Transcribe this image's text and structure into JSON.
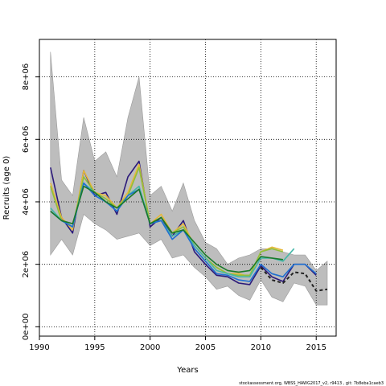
{
  "chart_data": {
    "type": "line",
    "title": "",
    "xlabel": "Years",
    "ylabel": "Recruits (age 0)",
    "xlim": [
      1990,
      2016.8
    ],
    "ylim": [
      -300000,
      9200000
    ],
    "xticks": [
      1990,
      1995,
      2000,
      2005,
      2010,
      2015
    ],
    "yticks": [
      0,
      2000000,
      4000000,
      6000000,
      8000000
    ],
    "ytick_labels": [
      "0e+00",
      "2e+06",
      "4e+06",
      "6e+06",
      "8e+06"
    ],
    "grid": true,
    "uncertainty_band": {
      "x": [
        1991,
        1992,
        1993,
        1994,
        1995,
        1996,
        1997,
        1998,
        1999,
        2000,
        2001,
        2002,
        2003,
        2004,
        2005,
        2006,
        2007,
        2008,
        2009,
        2010,
        2011,
        2012,
        2013,
        2014,
        2015,
        2016
      ],
      "upper": [
        8800000,
        4700000,
        4200000,
        6700000,
        5300000,
        5600000,
        4800000,
        6700000,
        8000000,
        4200000,
        4500000,
        3700000,
        4600000,
        3400000,
        2700000,
        2500000,
        2000000,
        2200000,
        2300000,
        2500000,
        2500000,
        2400000,
        2300000,
        2300000,
        1800000,
        2100000
      ],
      "lower": [
        2300000,
        2800000,
        2300000,
        3600000,
        3300000,
        3100000,
        2800000,
        2900000,
        3000000,
        2600000,
        2800000,
        2200000,
        2300000,
        1900000,
        1600000,
        1200000,
        1300000,
        1000000,
        850000,
        1500000,
        950000,
        800000,
        1400000,
        1300000,
        700000,
        700000
      ]
    },
    "series": [
      {
        "color": "#2c1a7a",
        "x": [
          1991,
          1992,
          1993,
          1994,
          1995,
          1996,
          1997,
          1998,
          1999,
          2000,
          2001,
          2002,
          2003,
          2004,
          2005,
          2006,
          2007,
          2008,
          2009,
          2010,
          2011,
          2012,
          2013,
          2014,
          2015
        ],
        "values": [
          5100000,
          3500000,
          3000000,
          5000000,
          4200000,
          4300000,
          3600000,
          4800000,
          5300000,
          3200000,
          3500000,
          2900000,
          3400000,
          2400000,
          2000000,
          1650000,
          1600000,
          1400000,
          1350000,
          1950000,
          1600000,
          1450000,
          2000000,
          2000000,
          1650000
        ]
      },
      {
        "color": "#e6b83a",
        "x": [
          1991,
          1992,
          1993,
          1994,
          1995,
          1996,
          1997,
          1998,
          1999,
          2000,
          2001,
          2002,
          2003,
          2004,
          2005,
          2006,
          2007,
          2008,
          2009,
          2010,
          2011,
          2012
        ],
        "values": [
          4600000,
          3500000,
          3100000,
          5000000,
          4300000,
          4200000,
          3800000,
          4300000,
          5200000,
          3300000,
          3600000,
          3000000,
          3300000,
          2600000,
          2200000,
          1900000,
          1700000,
          1700000,
          1600000,
          2400000,
          2550000,
          2450000
        ]
      },
      {
        "color": "#8fbf3a",
        "x": [
          1991,
          1992,
          1993,
          1994,
          1995,
          1996,
          1997,
          1998,
          1999,
          2000,
          2001,
          2002,
          2003,
          2004,
          2005,
          2006,
          2007,
          2008,
          2009,
          2010,
          2011,
          2012
        ],
        "values": [
          4500000,
          3400000,
          3200000,
          4800000,
          4300000,
          4100000,
          3800000,
          4200000,
          5100000,
          3300000,
          3500000,
          3000000,
          3200000,
          2600000,
          2200000,
          1900000,
          1700000,
          1650000,
          1650000,
          2400000,
          2500000,
          2400000
        ]
      },
      {
        "color": "#44b7a8",
        "x": [
          1991,
          1992,
          1993,
          1994,
          1995,
          1996,
          1997,
          1998,
          1999,
          2000,
          2001,
          2002,
          2003,
          2004,
          2005,
          2006,
          2007,
          2008,
          2009,
          2010,
          2011,
          2012,
          2013
        ],
        "values": [
          3800000,
          3400000,
          3200000,
          4600000,
          4300000,
          4000000,
          3700000,
          4200000,
          4500000,
          3300000,
          3400000,
          2900000,
          3100000,
          2600000,
          2200000,
          1800000,
          1700000,
          1600000,
          1600000,
          2200000,
          2200000,
          2100000,
          2500000
        ]
      },
      {
        "color": "#1f6fd1",
        "x": [
          1991,
          1992,
          1993,
          1994,
          1995,
          1996,
          1997,
          1998,
          1999,
          2000,
          2001,
          2002,
          2003,
          2004,
          2005,
          2006,
          2007,
          2008,
          2009,
          2010,
          2011,
          2012,
          2013,
          2014,
          2015
        ],
        "values": [
          3700000,
          3400000,
          3200000,
          4600000,
          4200000,
          4000000,
          3700000,
          4200000,
          4400000,
          3300000,
          3400000,
          2800000,
          3100000,
          2500000,
          2100000,
          1700000,
          1650000,
          1500000,
          1450000,
          2000000,
          1700000,
          1600000,
          2000000,
          2000000,
          1700000
        ]
      },
      {
        "color": "#1a7a2a",
        "x": [
          1991,
          1992,
          1993,
          1994,
          1995,
          1996,
          1997,
          1998,
          1999,
          2000,
          2001,
          2002,
          2003,
          2004,
          2005,
          2006,
          2007,
          2008,
          2009,
          2010,
          2011,
          2012
        ],
        "values": [
          3700000,
          3400000,
          3300000,
          4500000,
          4300000,
          4000000,
          3800000,
          4100000,
          4400000,
          3300000,
          3500000,
          3000000,
          3100000,
          2700000,
          2300000,
          2000000,
          1800000,
          1750000,
          1800000,
          2250000,
          2200000,
          2150000
        ]
      },
      {
        "color": "#222222",
        "dashed": true,
        "x": [
          2010,
          2011,
          2012,
          2013,
          2014,
          2015,
          2016
        ],
        "values": [
          1900000,
          1500000,
          1400000,
          1750000,
          1700000,
          1150000,
          1200000
        ]
      }
    ]
  },
  "footer": {
    "text": "stockassessment.org,  WBSS_HAWG2017_v2,  r9413 ,  git:  7b8eba1caeb3"
  }
}
